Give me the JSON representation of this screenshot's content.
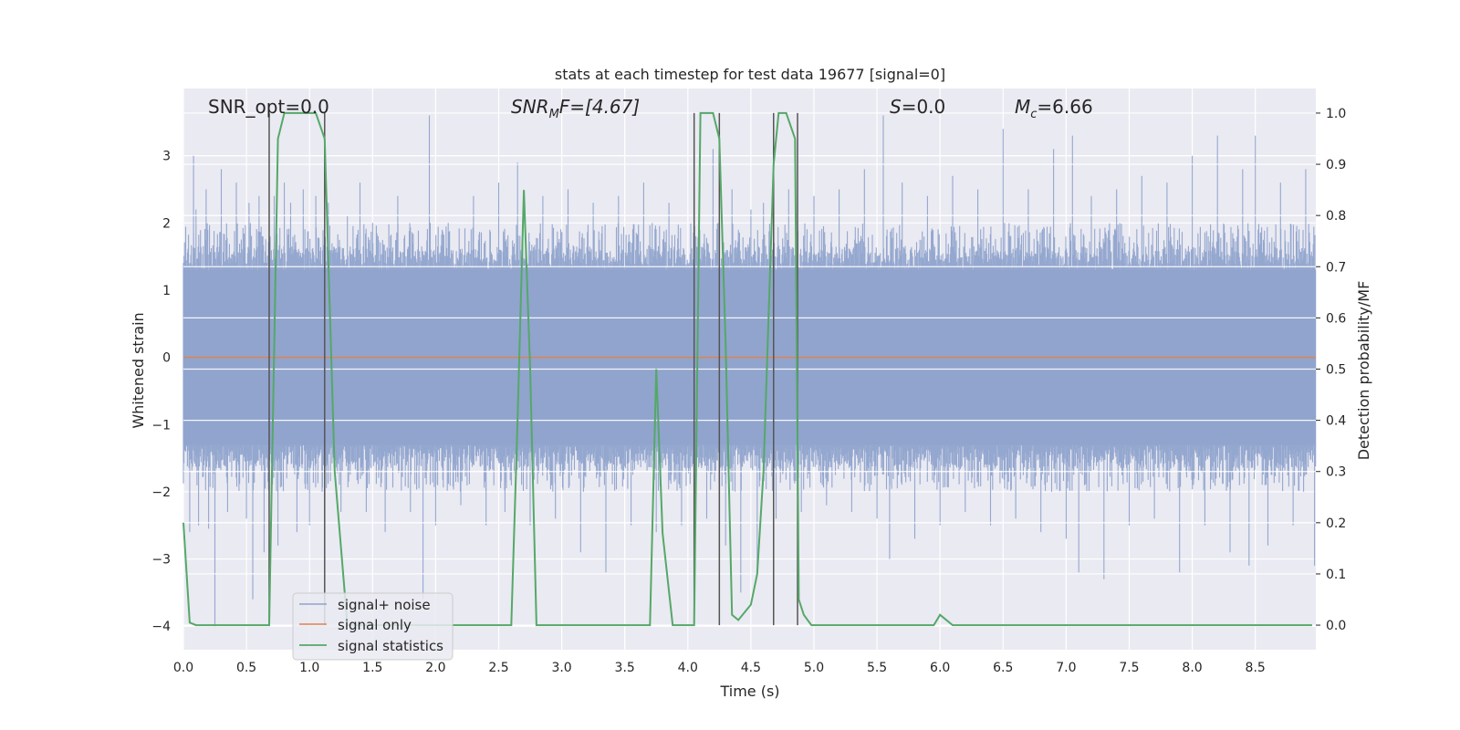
{
  "chart_data": {
    "type": "line",
    "title": "stats at each timestep for test data 19677 [signal=0]",
    "xlabel": "Time (s)",
    "ylabel_left": "Whitened strain",
    "ylabel_right": "Detection probability/MF",
    "xlim": [
      0.0,
      8.98
    ],
    "ylim_left": [
      -4.35,
      4.0
    ],
    "ylim_right": [
      -0.048,
      1.048
    ],
    "grid": true,
    "legend_position": "lower-left",
    "x_ticks": [
      0.0,
      0.5,
      1.0,
      1.5,
      2.0,
      2.5,
      3.0,
      3.5,
      4.0,
      4.5,
      5.0,
      5.5,
      6.0,
      6.5,
      7.0,
      7.5,
      8.0,
      8.5
    ],
    "x_tick_labels": [
      "0.0",
      "0.5",
      "1.0",
      "1.5",
      "2.0",
      "2.5",
      "3.0",
      "3.5",
      "4.0",
      "4.5",
      "5.0",
      "5.5",
      "6.0",
      "6.5",
      "7.0",
      "7.5",
      "8.0",
      "8.5"
    ],
    "y_ticks_left": [
      3,
      2,
      1,
      0,
      -1,
      -2,
      -3,
      -4
    ],
    "y_tick_labels_left": [
      "3",
      "2",
      "1",
      "0",
      "−1",
      "−2",
      "−3",
      "−4"
    ],
    "y_ticks_right": [
      1.0,
      0.9,
      0.8,
      0.7,
      0.6,
      0.5,
      0.4,
      0.3,
      0.2,
      0.1,
      0.0
    ],
    "y_tick_labels_right": [
      "1.0",
      "0.9",
      "0.8",
      "0.7",
      "0.6",
      "0.5",
      "0.4",
      "0.3",
      "0.2",
      "0.1",
      "0.0"
    ],
    "annotations": {
      "snr_opt": "SNR_opt=0.0",
      "snr_mf_base": "SNR",
      "snr_mf_sub": "M",
      "snr_mf_rest": "F=[4.67]",
      "s_base": "S",
      "s_rest": "=0.0",
      "mc_base": "M",
      "mc_sub": "c",
      "mc_rest": "=6.66"
    },
    "legend": [
      "signal+ noise",
      "signal only",
      "signal statistics"
    ],
    "colors": {
      "noise": "#8fa3cc",
      "signal_only": "#dd8452",
      "statistics": "#55a868",
      "vlines": "#555555",
      "background": "#eaeaf2"
    },
    "series": [
      {
        "name": "signal+ noise",
        "axis": "left",
        "envelope": {
          "core": 1.3,
          "typical_peak": 2.0,
          "spikes": [
            [
              0.05,
              -2.6
            ],
            [
              0.08,
              3.0
            ],
            [
              0.1,
              2.2
            ],
            [
              0.12,
              -2.5
            ],
            [
              0.18,
              2.5
            ],
            [
              0.2,
              -2.55
            ],
            [
              0.25,
              -4.0
            ],
            [
              0.3,
              2.8
            ],
            [
              0.35,
              -2.3
            ],
            [
              0.42,
              2.6
            ],
            [
              0.5,
              -2.4
            ],
            [
              0.52,
              2.3
            ],
            [
              0.55,
              -3.6
            ],
            [
              0.6,
              2.4
            ],
            [
              0.64,
              -2.9
            ],
            [
              0.68,
              -2.3
            ],
            [
              0.72,
              2.4
            ],
            [
              0.75,
              -2.8
            ],
            [
              0.8,
              2.6
            ],
            [
              0.85,
              2.3
            ],
            [
              0.9,
              -2.6
            ],
            [
              0.95,
              2.5
            ],
            [
              1.0,
              -2.5
            ],
            [
              1.05,
              2.4
            ],
            [
              1.1,
              -2.0
            ],
            [
              1.15,
              2.3
            ],
            [
              1.25,
              -2.3
            ],
            [
              1.3,
              2.1
            ],
            [
              1.4,
              2.6
            ],
            [
              1.45,
              -2.3
            ],
            [
              1.5,
              2.0
            ],
            [
              1.6,
              -2.6
            ],
            [
              1.7,
              2.4
            ],
            [
              1.8,
              -2.3
            ],
            [
              1.9,
              -3.6
            ],
            [
              1.95,
              3.6
            ],
            [
              2.0,
              -2.5
            ],
            [
              2.1,
              2.0
            ],
            [
              2.2,
              -2.2
            ],
            [
              2.3,
              2.4
            ],
            [
              2.4,
              -2.5
            ],
            [
              2.5,
              2.6
            ],
            [
              2.55,
              -2.3
            ],
            [
              2.65,
              2.9
            ],
            [
              2.75,
              -2.5
            ],
            [
              2.85,
              2.4
            ],
            [
              2.95,
              -2.4
            ],
            [
              3.05,
              2.5
            ],
            [
              3.15,
              -2.9
            ],
            [
              3.25,
              2.3
            ],
            [
              3.35,
              -3.2
            ],
            [
              3.45,
              2.4
            ],
            [
              3.55,
              -2.5
            ],
            [
              3.65,
              2.6
            ],
            [
              3.75,
              -2.6
            ],
            [
              3.85,
              2.3
            ],
            [
              3.95,
              -2.5
            ],
            [
              4.05,
              2.6
            ],
            [
              4.15,
              -2.4
            ],
            [
              4.2,
              3.1
            ],
            [
              4.3,
              -2.8
            ],
            [
              4.35,
              2.5
            ],
            [
              4.42,
              -3.5
            ],
            [
              4.5,
              2.2
            ],
            [
              4.55,
              -3.2
            ],
            [
              4.6,
              2.3
            ],
            [
              4.7,
              -2.4
            ],
            [
              4.8,
              2.5
            ],
            [
              4.9,
              -2.3
            ],
            [
              5.0,
              2.4
            ],
            [
              5.1,
              -2.2
            ],
            [
              5.2,
              2.5
            ],
            [
              5.3,
              -2.3
            ],
            [
              5.4,
              2.8
            ],
            [
              5.5,
              -2.4
            ],
            [
              5.55,
              3.6
            ],
            [
              5.6,
              -3.0
            ],
            [
              5.7,
              2.6
            ],
            [
              5.8,
              -2.7
            ],
            [
              5.9,
              2.4
            ],
            [
              6.0,
              -2.5
            ],
            [
              6.1,
              2.7
            ],
            [
              6.2,
              -2.3
            ],
            [
              6.3,
              2.5
            ],
            [
              6.4,
              -2.5
            ],
            [
              6.5,
              3.4
            ],
            [
              6.6,
              -2.4
            ],
            [
              6.7,
              2.5
            ],
            [
              6.8,
              -2.6
            ],
            [
              6.9,
              3.1
            ],
            [
              7.0,
              -2.7
            ],
            [
              7.05,
              3.3
            ],
            [
              7.1,
              -3.2
            ],
            [
              7.2,
              2.4
            ],
            [
              7.3,
              -3.3
            ],
            [
              7.4,
              2.5
            ],
            [
              7.5,
              -2.5
            ],
            [
              7.6,
              2.7
            ],
            [
              7.7,
              -2.4
            ],
            [
              7.8,
              2.6
            ],
            [
              7.9,
              -3.2
            ],
            [
              8.0,
              3.0
            ],
            [
              8.1,
              -2.5
            ],
            [
              8.2,
              3.3
            ],
            [
              8.3,
              -2.9
            ],
            [
              8.4,
              2.8
            ],
            [
              8.45,
              -3.1
            ],
            [
              8.5,
              3.3
            ],
            [
              8.6,
              -2.8
            ],
            [
              8.7,
              2.6
            ],
            [
              8.8,
              -2.5
            ],
            [
              8.9,
              2.8
            ],
            [
              8.97,
              -3.1
            ]
          ]
        }
      },
      {
        "name": "signal only",
        "axis": "left",
        "x": [
          0.0,
          8.98
        ],
        "y": [
          0.0,
          0.0
        ]
      },
      {
        "name": "signal statistics",
        "axis": "right",
        "x": [
          0.0,
          0.05,
          0.1,
          0.6,
          0.68,
          0.75,
          0.8,
          1.05,
          1.12,
          1.2,
          1.3,
          1.5,
          2.6,
          2.65,
          2.7,
          2.75,
          2.8,
          3.7,
          3.75,
          3.8,
          3.88,
          4.05,
          4.1,
          4.2,
          4.25,
          4.3,
          4.35,
          4.4,
          4.5,
          4.55,
          4.6,
          4.68,
          4.72,
          4.78,
          4.85,
          4.88,
          4.92,
          4.98,
          5.05,
          5.95,
          6.0,
          6.1,
          8.95
        ],
        "y": [
          0.2,
          0.005,
          0.0,
          0.0,
          0.0,
          0.95,
          1.0,
          1.0,
          0.95,
          0.3,
          0.0,
          0.0,
          0.0,
          0.4,
          0.85,
          0.5,
          0.0,
          0.0,
          0.5,
          0.18,
          0.0,
          0.0,
          1.0,
          1.0,
          0.95,
          0.55,
          0.02,
          0.01,
          0.04,
          0.1,
          0.3,
          0.9,
          1.0,
          1.0,
          0.95,
          0.05,
          0.02,
          0.0,
          0.0,
          0.0,
          0.02,
          0.0,
          0.0
        ]
      }
    ],
    "vlines": [
      0.68,
      1.12,
      4.05,
      4.25,
      4.68,
      4.87
    ]
  }
}
